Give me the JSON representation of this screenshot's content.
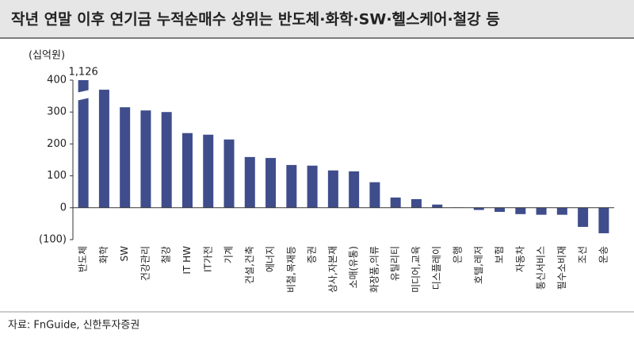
{
  "chart_data": {
    "type": "bar",
    "title": "작년 연말 이후 연기금 누적순매수 상위는 반도체·화학·SW·헬스케어·철강 등",
    "y_label": "(십억원)",
    "source": "자료: FnGuide, 신한투자증권",
    "categories": [
      "반도체",
      "화학",
      "SW",
      "건강관리",
      "철강",
      "IT HW",
      "IT가전",
      "기계",
      "건설,건축",
      "에너지",
      "비철,목재등",
      "증권",
      "상사,자본재",
      "소매(유통)",
      "화장품,의류",
      "유틸리티",
      "미디어,교육",
      "디스플레이",
      "은행",
      "호텔,레저",
      "보험",
      "자동차",
      "통신서비스",
      "필수소비재",
      "조선",
      "운송"
    ],
    "values": [
      1126,
      370,
      315,
      305,
      300,
      234,
      229,
      214,
      159,
      156,
      134,
      132,
      117,
      114,
      80,
      32,
      27,
      10,
      1,
      -7,
      -13,
      -20,
      -22,
      -22,
      -60,
      -80
    ],
    "value_labels": [
      "1,126",
      null,
      null,
      null,
      null,
      null,
      null,
      null,
      null,
      null,
      null,
      null,
      null,
      null,
      null,
      null,
      null,
      null,
      null,
      null,
      null,
      null,
      null,
      null,
      null,
      null
    ],
    "color": "#3f4d8c",
    "ylim": [
      -100,
      400
    ],
    "yticks": [
      {
        "value": -100,
        "label": "(100)"
      },
      0,
      100,
      200,
      300,
      400
    ],
    "grid": false
  }
}
